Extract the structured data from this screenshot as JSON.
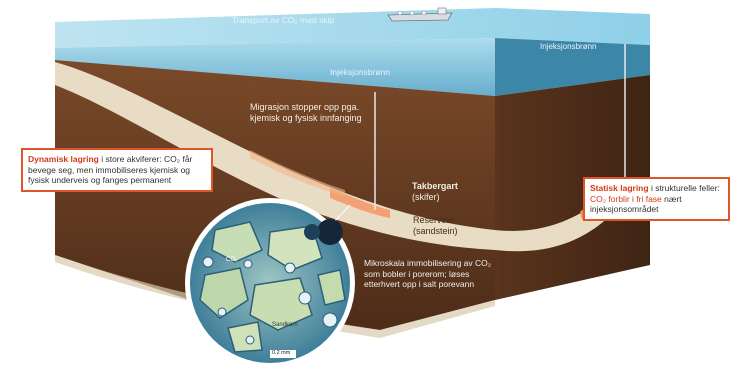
{
  "ship_label": "Transport av CO₂ med skip",
  "well_label_top": "Injeksjonsbrønn",
  "well_label_sea": "Injeksjonsbrønn",
  "migration_text": "Migrasjon stopper opp pga. kjemisk og fysisk innfanging",
  "caprock": {
    "line1": "Takbergart",
    "line2": "(skifer)"
  },
  "reservoir": {
    "line1": "Reservoar",
    "line2": "(sandstein)"
  },
  "dynamic_callout": {
    "title": "Dynamisk lagring",
    "text": " i store akviferer: CO₂ får bevege seg, men immobiliseres kjemisk og fysisk underveis og fanges permanent"
  },
  "static_callout": {
    "title": "Statisk lagring",
    "text1": " i strukturelle feller: ",
    "highlight": "CO₂ forblir i fri fase",
    "text2": " nært injeksjonsområdet"
  },
  "micro_text": "Mikroskala immobilisering av CO₂ som bobler i porerom; løses etterhvert opp i salt porevann",
  "micro_labels": {
    "co2": "CO₂",
    "sandkorn": "Sandkorn",
    "scale": "0.2 mm"
  },
  "colors": {
    "sea": "#4aa6c9",
    "rock_dark": "#4a2c1a",
    "rock": "#6b3f22",
    "reservoir": "#e9dcc4",
    "accent": "#e0542a"
  }
}
